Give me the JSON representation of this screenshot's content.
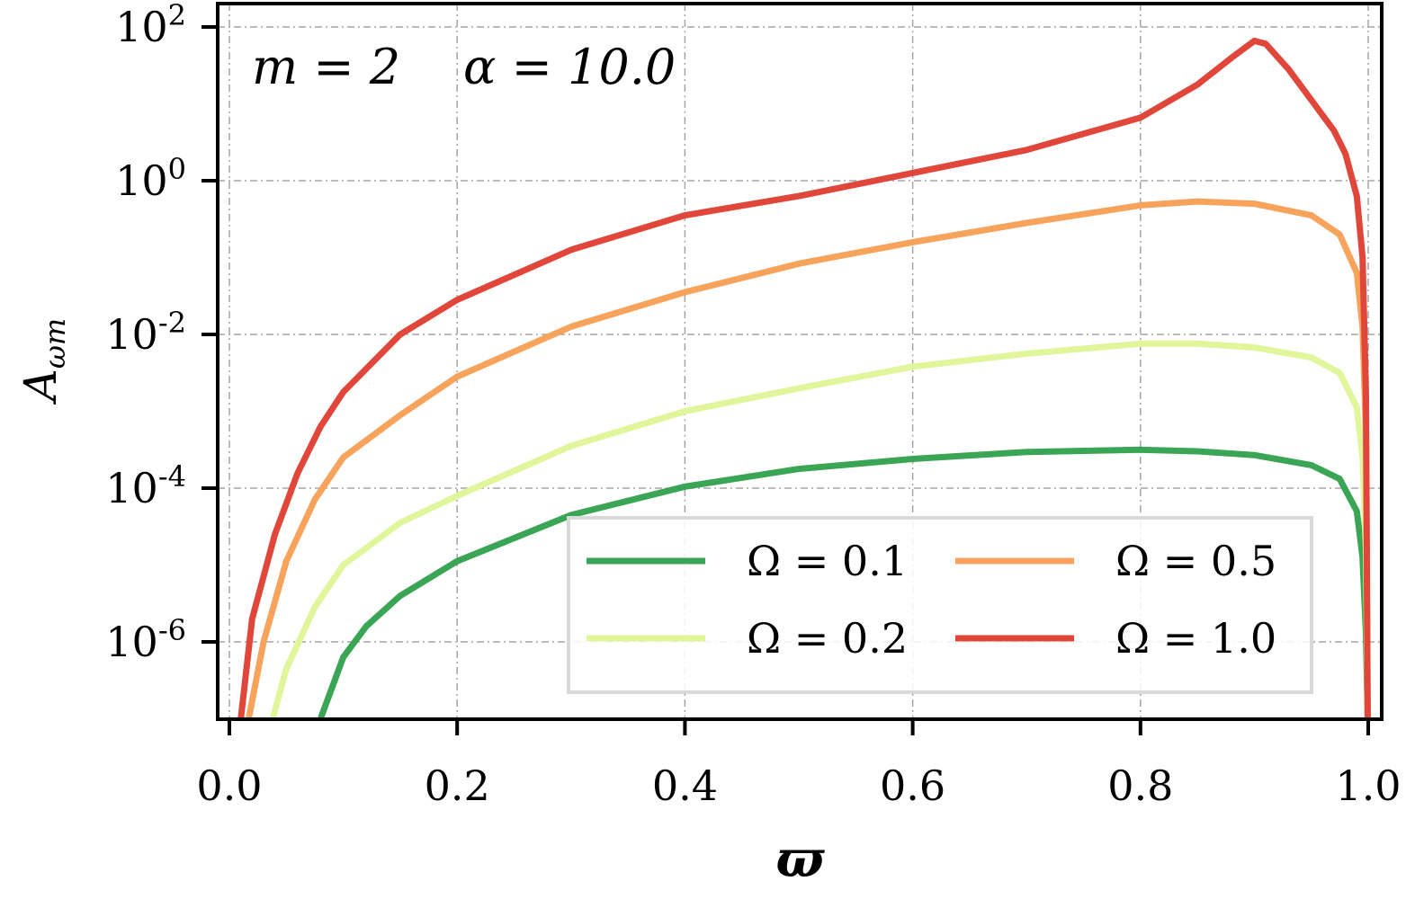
{
  "chart_data": {
    "type": "line",
    "title": "",
    "annotation": {
      "m_text": "m = 2",
      "alpha_text": "α = 10.0"
    },
    "xlabel": "ϖ",
    "ylabel": {
      "main": "A",
      "sub": "ωm"
    },
    "xlim": [
      0.0,
      1.0
    ],
    "ylim_log10": [
      -7.0,
      2.0
    ],
    "yscale": "log",
    "grid": true,
    "legend_placement": "bottom-right",
    "x_ticks": [
      "0.0",
      "0.2",
      "0.4",
      "0.6",
      "0.8",
      "1.0"
    ],
    "y_ticks": [
      {
        "base": "10",
        "exp": "2"
      },
      {
        "base": "10",
        "exp": "0"
      },
      {
        "base": "10",
        "exp": "-2"
      },
      {
        "base": "10",
        "exp": "-4"
      },
      {
        "base": "10",
        "exp": "-6"
      }
    ],
    "series": [
      {
        "name": "Ω = 0.1",
        "color": "#3aa655",
        "points": [
          [
            0.08,
            -7.0
          ],
          [
            0.1,
            -6.2
          ],
          [
            0.12,
            -5.8
          ],
          [
            0.15,
            -5.4
          ],
          [
            0.2,
            -4.95
          ],
          [
            0.3,
            -4.35
          ],
          [
            0.4,
            -3.98
          ],
          [
            0.5,
            -3.75
          ],
          [
            0.6,
            -3.62
          ],
          [
            0.7,
            -3.53
          ],
          [
            0.8,
            -3.5
          ],
          [
            0.85,
            -3.52
          ],
          [
            0.9,
            -3.57
          ],
          [
            0.95,
            -3.7
          ],
          [
            0.975,
            -3.88
          ],
          [
            0.99,
            -4.3
          ],
          [
            0.995,
            -4.9
          ],
          [
            0.998,
            -5.9
          ],
          [
            0.9995,
            -7.0
          ]
        ]
      },
      {
        "name": "Ω = 0.2",
        "color": "#e1f59b",
        "points": [
          [
            0.038,
            -7.0
          ],
          [
            0.05,
            -6.35
          ],
          [
            0.075,
            -5.55
          ],
          [
            0.1,
            -5.0
          ],
          [
            0.15,
            -4.45
          ],
          [
            0.2,
            -4.1
          ],
          [
            0.3,
            -3.45
          ],
          [
            0.4,
            -3.0
          ],
          [
            0.5,
            -2.7
          ],
          [
            0.6,
            -2.42
          ],
          [
            0.7,
            -2.25
          ],
          [
            0.8,
            -2.12
          ],
          [
            0.85,
            -2.12
          ],
          [
            0.9,
            -2.17
          ],
          [
            0.95,
            -2.3
          ],
          [
            0.975,
            -2.5
          ],
          [
            0.99,
            -2.95
          ],
          [
            0.995,
            -3.6
          ],
          [
            0.998,
            -4.8
          ],
          [
            0.9995,
            -7.0
          ]
        ]
      },
      {
        "name": "Ω = 0.5",
        "color": "#f8a35c",
        "points": [
          [
            0.017,
            -7.0
          ],
          [
            0.03,
            -6.0
          ],
          [
            0.05,
            -4.95
          ],
          [
            0.075,
            -4.15
          ],
          [
            0.1,
            -3.6
          ],
          [
            0.15,
            -3.05
          ],
          [
            0.2,
            -2.55
          ],
          [
            0.3,
            -1.9
          ],
          [
            0.4,
            -1.45
          ],
          [
            0.5,
            -1.08
          ],
          [
            0.6,
            -0.8
          ],
          [
            0.7,
            -0.55
          ],
          [
            0.8,
            -0.32
          ],
          [
            0.85,
            -0.27
          ],
          [
            0.9,
            -0.3
          ],
          [
            0.95,
            -0.45
          ],
          [
            0.975,
            -0.7
          ],
          [
            0.99,
            -1.2
          ],
          [
            0.995,
            -1.9
          ],
          [
            0.998,
            -3.3
          ],
          [
            0.9995,
            -7.0
          ]
        ]
      },
      {
        "name": "Ω = 1.0",
        "color": "#e0473a",
        "points": [
          [
            0.01,
            -7.0
          ],
          [
            0.02,
            -5.7
          ],
          [
            0.04,
            -4.6
          ],
          [
            0.06,
            -3.8
          ],
          [
            0.08,
            -3.2
          ],
          [
            0.1,
            -2.75
          ],
          [
            0.15,
            -2.0
          ],
          [
            0.2,
            -1.55
          ],
          [
            0.3,
            -0.9
          ],
          [
            0.4,
            -0.45
          ],
          [
            0.5,
            -0.2
          ],
          [
            0.6,
            0.1
          ],
          [
            0.7,
            0.4
          ],
          [
            0.8,
            0.82
          ],
          [
            0.85,
            1.25
          ],
          [
            0.88,
            1.6
          ],
          [
            0.9,
            1.82
          ],
          [
            0.91,
            1.78
          ],
          [
            0.93,
            1.45
          ],
          [
            0.95,
            1.05
          ],
          [
            0.97,
            0.65
          ],
          [
            0.98,
            0.35
          ],
          [
            0.99,
            -0.2
          ],
          [
            0.995,
            -1.0
          ],
          [
            0.998,
            -2.8
          ],
          [
            0.9995,
            -7.0
          ]
        ]
      }
    ]
  }
}
